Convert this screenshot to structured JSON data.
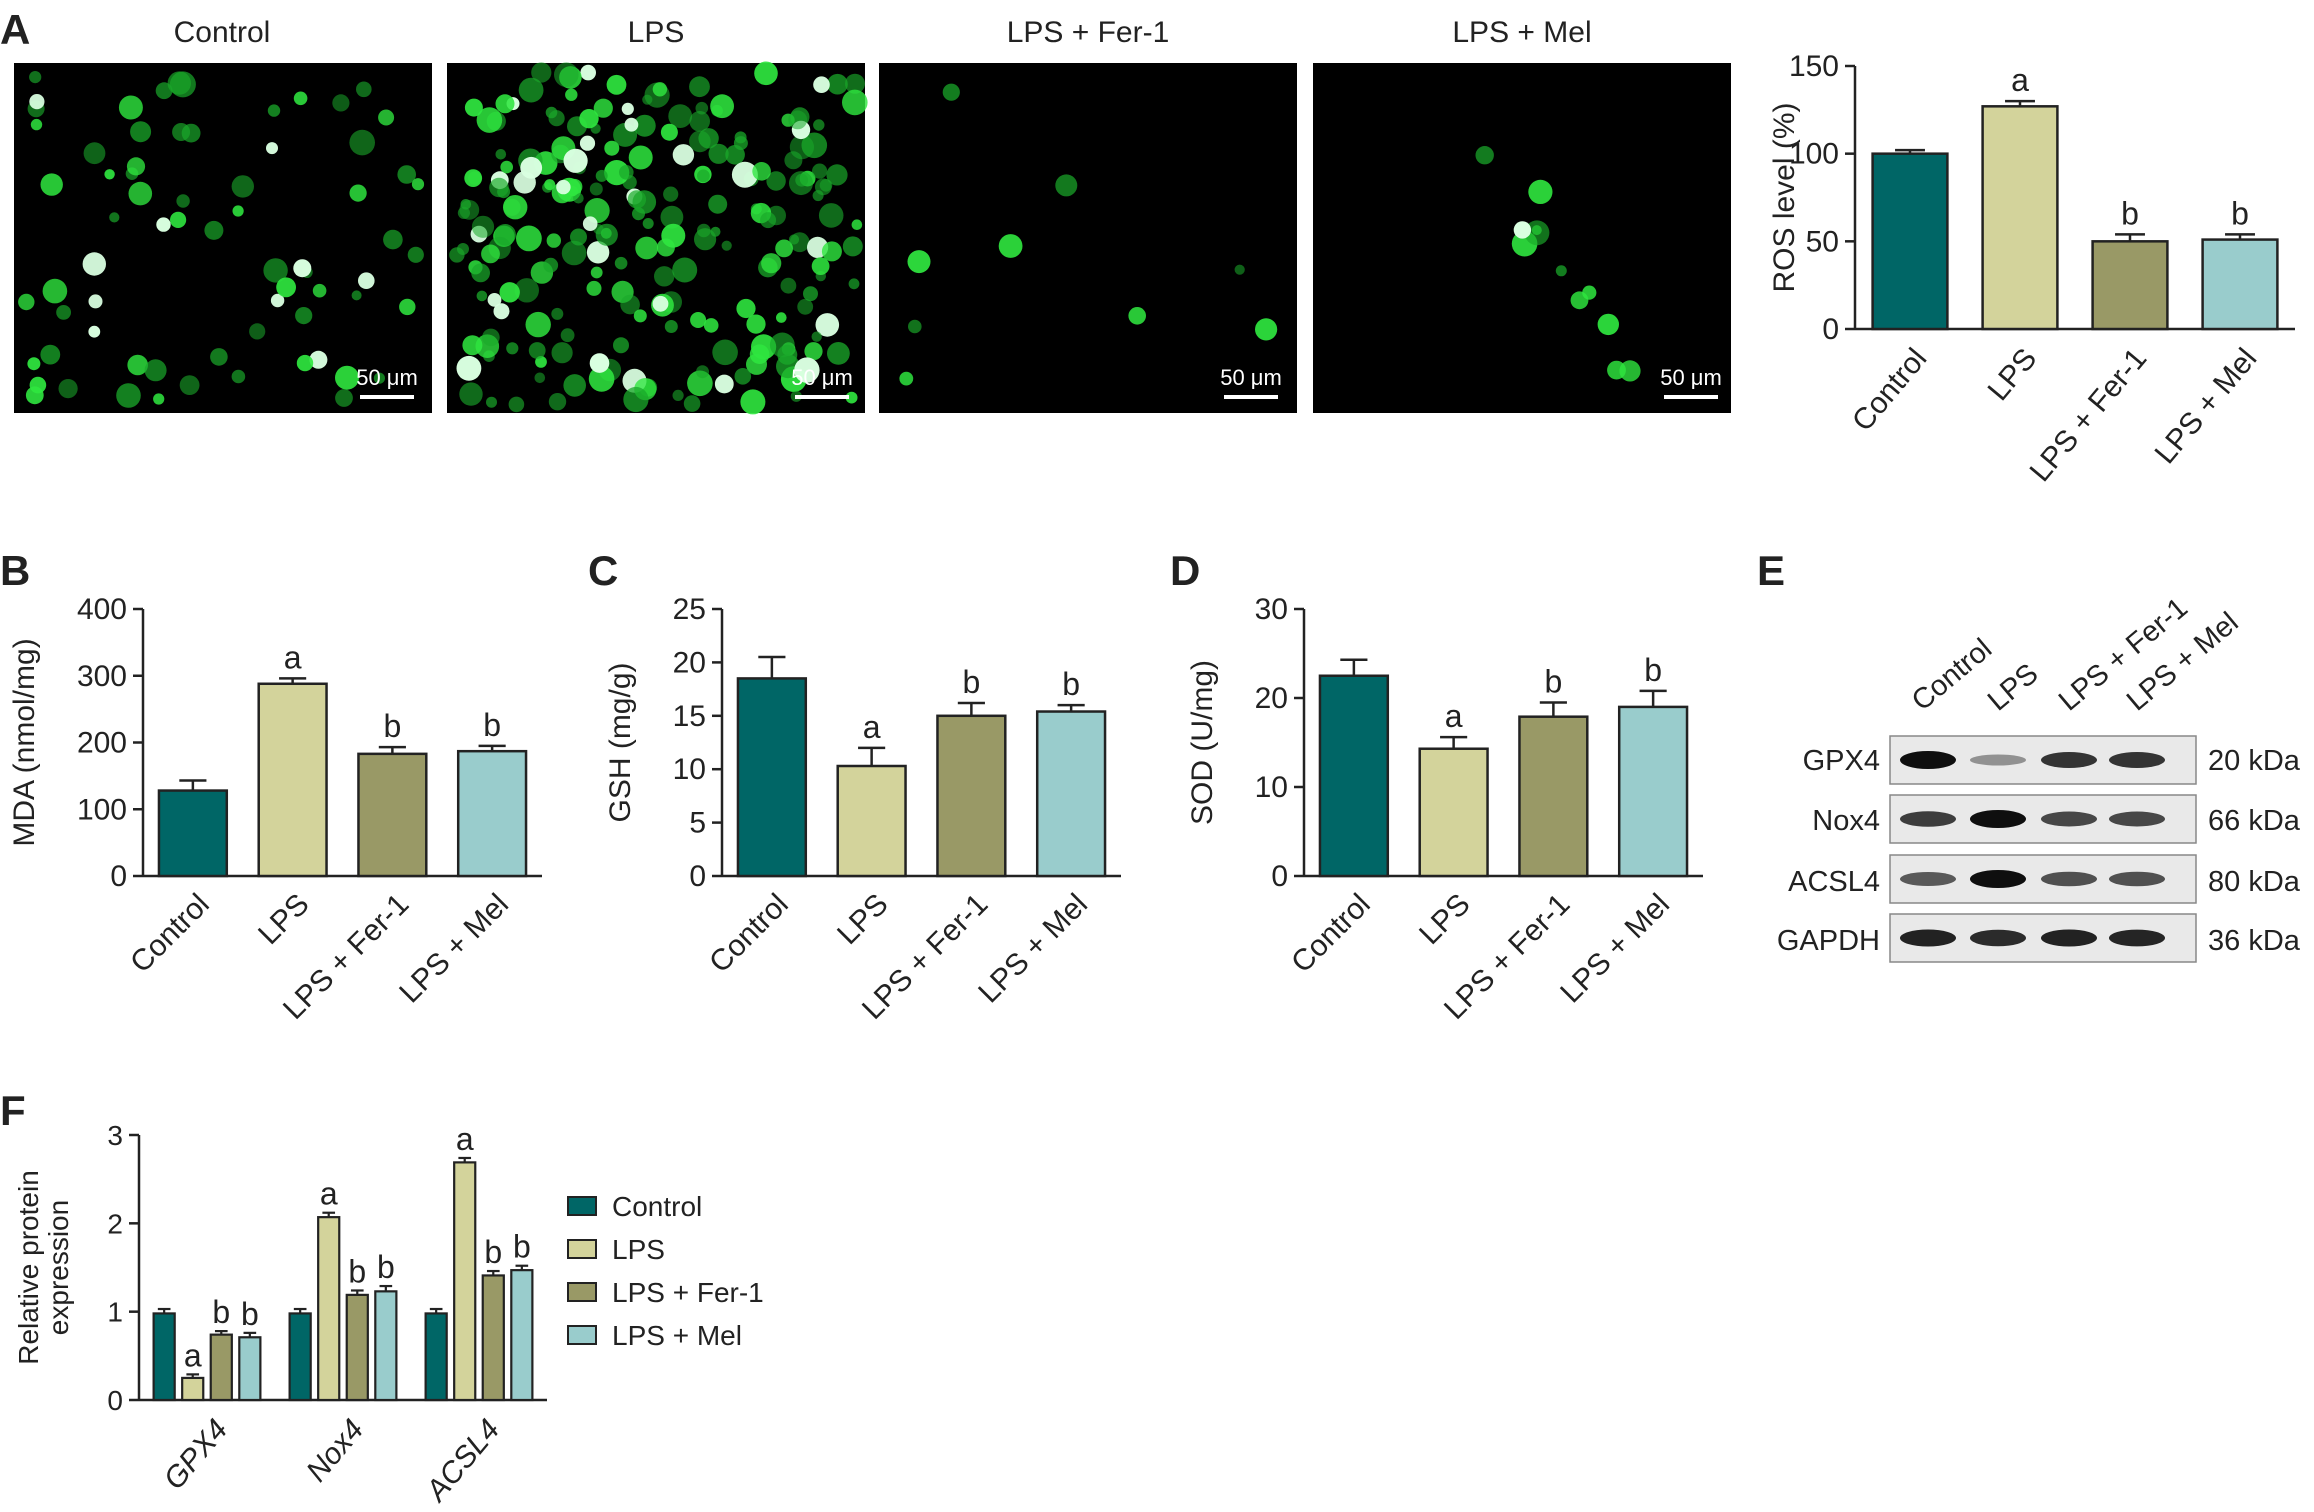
{
  "panels": {
    "a": "A",
    "b": "B",
    "c": "C",
    "d": "D",
    "e": "E",
    "f": "F"
  },
  "colors": {
    "control": "#006666",
    "lps": "#D3D39B",
    "fer1": "#999966",
    "mel": "#99CCCC",
    "fluorescence": "#22DD33"
  },
  "images": [
    {
      "label": "Control",
      "scale_bar": "50 μm",
      "density": "medium"
    },
    {
      "label": "LPS",
      "scale_bar": "50 μm",
      "density": "high"
    },
    {
      "label": "LPS + Fer-1",
      "scale_bar": "50 μm",
      "density": "very-low"
    },
    {
      "label": "LPS + Mel",
      "scale_bar": "50 μm",
      "density": "low"
    }
  ],
  "western_blot": {
    "lanes": [
      "Control",
      "LPS",
      "LPS + Fer-1",
      "LPS + Mel"
    ],
    "bands": [
      {
        "protein": "GPX4",
        "size": "20 kDa",
        "intensity": [
          1.0,
          0.3,
          0.8,
          0.8
        ]
      },
      {
        "protein": "Nox4",
        "size": "66 kDa",
        "intensity": [
          0.75,
          1.0,
          0.7,
          0.7
        ]
      },
      {
        "protein": "ACSL4",
        "size": "80 kDa",
        "intensity": [
          0.6,
          1.0,
          0.65,
          0.65
        ]
      },
      {
        "protein": "GAPDH",
        "size": "36 kDa",
        "intensity": [
          0.9,
          0.85,
          0.9,
          0.88
        ]
      }
    ]
  },
  "chart_data": [
    {
      "id": "ros",
      "type": "bar",
      "categories": [
        "Control",
        "LPS",
        "LPS + Fer-1",
        "LPS + Mel"
      ],
      "values": [
        100,
        127,
        50,
        51
      ],
      "errors": [
        2,
        3,
        4,
        3
      ],
      "annotations": [
        "",
        "a",
        "b",
        "b"
      ],
      "ylabel": "ROS level (%)",
      "ylim": [
        0,
        150
      ],
      "yticks": [
        0,
        50,
        100,
        150
      ]
    },
    {
      "id": "mda",
      "type": "bar",
      "categories": [
        "Control",
        "LPS",
        "LPS + Fer-1",
        "LPS + Mel"
      ],
      "values": [
        128,
        288,
        183,
        187
      ],
      "errors": [
        15,
        8,
        10,
        8
      ],
      "annotations": [
        "",
        "a",
        "b",
        "b"
      ],
      "ylabel": "MDA (nmol/mg)",
      "ylim": [
        0,
        400
      ],
      "yticks": [
        0,
        100,
        200,
        300,
        400
      ]
    },
    {
      "id": "gsh",
      "type": "bar",
      "categories": [
        "Control",
        "LPS",
        "LPS + Fer-1",
        "LPS + Mel"
      ],
      "values": [
        18.5,
        10.3,
        15.0,
        15.4
      ],
      "errors": [
        2.0,
        1.7,
        1.2,
        0.6
      ],
      "annotations": [
        "",
        "a",
        "b",
        "b"
      ],
      "ylabel": "GSH (mg/g)",
      "ylim": [
        0,
        25
      ],
      "yticks": [
        0,
        5,
        10,
        15,
        20,
        25
      ]
    },
    {
      "id": "sod",
      "type": "bar",
      "categories": [
        "Control",
        "LPS",
        "LPS + Fer-1",
        "LPS + Mel"
      ],
      "values": [
        22.5,
        14.3,
        17.9,
        19.0
      ],
      "errors": [
        1.8,
        1.3,
        1.6,
        1.8
      ],
      "annotations": [
        "",
        "a",
        "b",
        "b"
      ],
      "ylabel": "SOD (U/mg)",
      "ylim": [
        0,
        30
      ],
      "yticks": [
        0,
        10,
        20,
        30
      ]
    },
    {
      "id": "protein",
      "type": "bar",
      "categories": [
        "GPX4",
        "Nox4",
        "ACSL4"
      ],
      "series": [
        {
          "name": "Control",
          "values": [
            0.98,
            0.98,
            0.98
          ],
          "errors": [
            0.05,
            0.05,
            0.05
          ],
          "annotations": [
            "",
            "",
            ""
          ]
        },
        {
          "name": "LPS",
          "values": [
            0.25,
            2.07,
            2.69
          ],
          "errors": [
            0.04,
            0.05,
            0.05
          ],
          "annotations": [
            "a",
            "a",
            "a"
          ]
        },
        {
          "name": "LPS + Fer-1",
          "values": [
            0.74,
            1.19,
            1.41
          ],
          "errors": [
            0.04,
            0.05,
            0.05
          ],
          "annotations": [
            "b",
            "b",
            "b"
          ]
        },
        {
          "name": "LPS + Mel",
          "values": [
            0.71,
            1.23,
            1.47
          ],
          "errors": [
            0.05,
            0.06,
            0.05
          ],
          "annotations": [
            "b",
            "b",
            "b"
          ]
        }
      ],
      "ylabel": "Relative protein expression",
      "ylim": [
        0,
        3
      ],
      "yticks": [
        0,
        1,
        2,
        3
      ],
      "legend": "right"
    }
  ]
}
